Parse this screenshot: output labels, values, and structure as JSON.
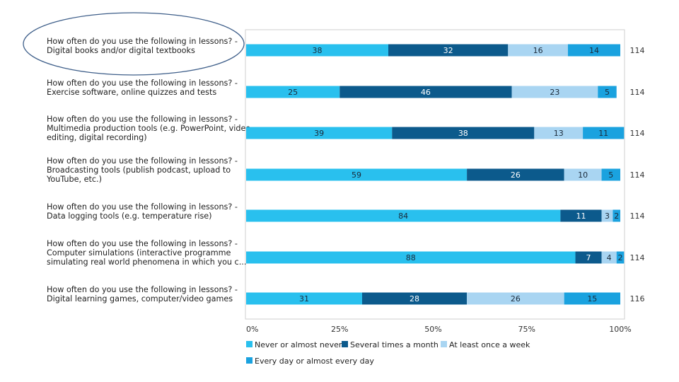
{
  "chart_data": {
    "type": "bar",
    "stacked": "percent",
    "orientation": "horizontal",
    "categories": [
      [
        "How often do you use the following in lessons?  -",
        "Digital books and/or digital textbooks"
      ],
      [
        "How often do you use the following in lessons?  -",
        "Exercise software, online quizzes and tests"
      ],
      [
        "How often do you use the following in lessons?  -",
        "Multimedia production tools (e.g. PowerPoint, video",
        "editing, digital recording)"
      ],
      [
        "How often do you use the following in lessons?  -",
        "Broadcasting tools (publish podcast, upload to",
        "YouTube, etc.)"
      ],
      [
        "How often do you use the following in lessons?  -",
        "Data logging tools (e.g. temperature rise)"
      ],
      [
        "How often do you use the following in lessons?  -",
        "Computer simulations (interactive programme",
        "simulating real world phenomena in which you c..."
      ],
      [
        "How often do you use the following in lessons?  -",
        "Digital learning games, computer/video games"
      ]
    ],
    "series": [
      {
        "name": "Never or almost never",
        "color": "#29c0ee",
        "values": [
          38,
          25,
          39,
          59,
          84,
          88,
          31
        ]
      },
      {
        "name": "Several times a month",
        "color": "#0c5a8c",
        "values": [
          32,
          46,
          38,
          26,
          11,
          7,
          28
        ]
      },
      {
        "name": "At least once a week",
        "color": "#a9d5f2",
        "values": [
          16,
          23,
          13,
          10,
          3,
          4,
          26
        ]
      },
      {
        "name": "Every day or almost every day",
        "color": "#1aa2df",
        "values": [
          14,
          5,
          11,
          5,
          2,
          2,
          15
        ]
      }
    ],
    "totals": [
      "114",
      "114",
      "114",
      "114",
      "114",
      "114",
      "116"
    ],
    "x_ticks": [
      "0%",
      "25%",
      "50%",
      "75%",
      "100%"
    ],
    "xlim": [
      0,
      100
    ],
    "legend_position": "bottom",
    "grid": false,
    "annotation": "ellipse around first category label"
  }
}
